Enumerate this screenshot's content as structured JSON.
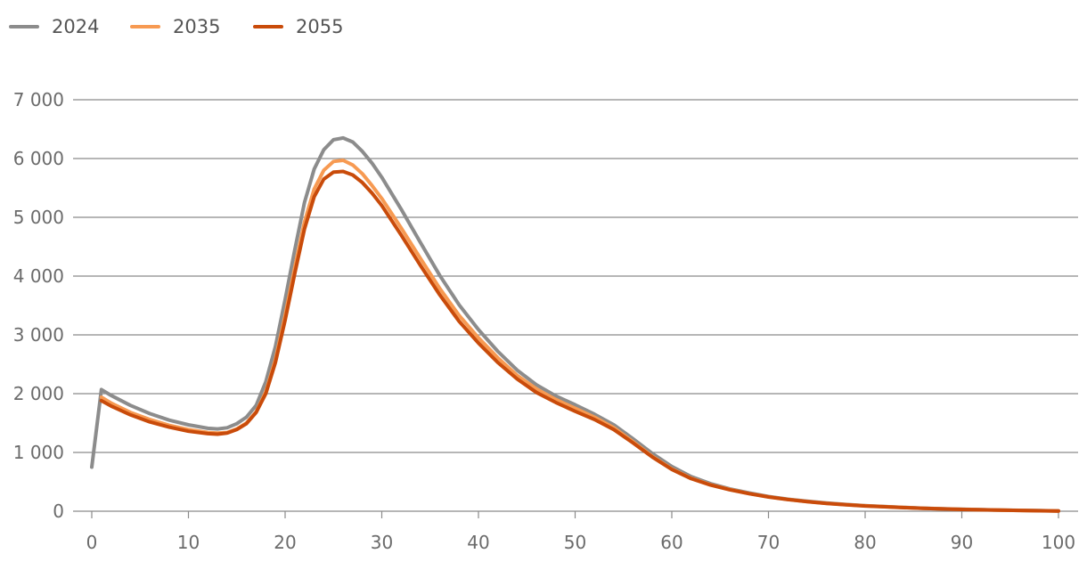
{
  "chart_data": {
    "type": "line",
    "title": "",
    "xlabel": "",
    "ylabel": "",
    "xlim": [
      0,
      100
    ],
    "ylim": [
      0,
      7000
    ],
    "grid": true,
    "legend_position": "top-left",
    "x_ticks": [
      0,
      10,
      20,
      30,
      40,
      50,
      60,
      70,
      80,
      90,
      100
    ],
    "x_tick_labels": [
      "0",
      "10",
      "20",
      "30",
      "40",
      "50",
      "60",
      "70",
      "80",
      "90",
      "100"
    ],
    "y_ticks": [
      0,
      1000,
      2000,
      3000,
      4000,
      5000,
      6000,
      7000
    ],
    "y_tick_labels": [
      "0",
      "1 000",
      "2 000",
      "3 000",
      "4 000",
      "5 000",
      "6 000",
      "7 000"
    ],
    "series": [
      {
        "name": "2024",
        "color": "#8c8c8c",
        "x": [
          0,
          1,
          2,
          4,
          6,
          8,
          10,
          12,
          13,
          14,
          15,
          16,
          17,
          18,
          19,
          20,
          21,
          22,
          23,
          24,
          25,
          26,
          27,
          28,
          29,
          30,
          32,
          34,
          36,
          38,
          40,
          42,
          44,
          46,
          48,
          50,
          52,
          54,
          56,
          58,
          60,
          62,
          64,
          66,
          68,
          70,
          72,
          74,
          76,
          78,
          80,
          82,
          84,
          86,
          88,
          90,
          92,
          94,
          96,
          98,
          100
        ],
        "values": [
          750,
          2070,
          1970,
          1800,
          1660,
          1550,
          1470,
          1410,
          1400,
          1420,
          1490,
          1600,
          1800,
          2200,
          2800,
          3600,
          4450,
          5250,
          5820,
          6150,
          6320,
          6350,
          6280,
          6120,
          5920,
          5680,
          5140,
          4570,
          4010,
          3510,
          3090,
          2720,
          2400,
          2150,
          1960,
          1810,
          1650,
          1470,
          1230,
          980,
          760,
          590,
          470,
          380,
          310,
          250,
          205,
          170,
          140,
          115,
          95,
          80,
          65,
          52,
          42,
          34,
          26,
          20,
          15,
          10,
          5
        ]
      },
      {
        "name": "2035",
        "color": "#f79a52",
        "x": [
          1,
          2,
          4,
          6,
          8,
          10,
          12,
          13,
          14,
          15,
          16,
          17,
          18,
          19,
          20,
          21,
          22,
          23,
          24,
          25,
          26,
          27,
          28,
          29,
          30,
          32,
          34,
          36,
          38,
          40,
          42,
          44,
          46,
          48,
          50,
          52,
          54,
          56,
          58,
          60,
          62,
          64,
          66,
          68,
          70,
          72,
          74,
          76,
          78,
          80,
          82,
          84,
          86,
          88,
          90,
          92,
          94,
          96,
          98,
          100
        ],
        "values": [
          1940,
          1840,
          1680,
          1560,
          1460,
          1390,
          1340,
          1330,
          1340,
          1400,
          1500,
          1690,
          2030,
          2580,
          3330,
          4150,
          4920,
          5480,
          5800,
          5950,
          5970,
          5890,
          5740,
          5540,
          5320,
          4820,
          4300,
          3790,
          3330,
          2950,
          2610,
          2310,
          2080,
          1900,
          1750,
          1600,
          1420,
          1180,
          930,
          720,
          560,
          450,
          370,
          300,
          245,
          200,
          165,
          135,
          112,
          92,
          77,
          63,
          50,
          40,
          32,
          25,
          19,
          14,
          9,
          4
        ]
      },
      {
        "name": "2055",
        "color": "#c94b0a",
        "x": [
          1,
          2,
          4,
          6,
          8,
          10,
          12,
          13,
          14,
          15,
          16,
          17,
          18,
          19,
          20,
          21,
          22,
          23,
          24,
          25,
          26,
          27,
          28,
          29,
          30,
          32,
          34,
          36,
          38,
          40,
          42,
          44,
          46,
          48,
          50,
          52,
          54,
          56,
          58,
          60,
          62,
          64,
          66,
          68,
          70,
          72,
          74,
          76,
          78,
          80,
          82,
          84,
          86,
          88,
          90,
          92,
          94,
          96,
          98,
          100
        ],
        "values": [
          1880,
          1790,
          1640,
          1520,
          1430,
          1360,
          1320,
          1310,
          1330,
          1390,
          1490,
          1680,
          2000,
          2530,
          3250,
          4050,
          4800,
          5350,
          5650,
          5770,
          5780,
          5720,
          5590,
          5410,
          5200,
          4700,
          4180,
          3680,
          3230,
          2860,
          2530,
          2250,
          2020,
          1850,
          1700,
          1560,
          1390,
          1160,
          920,
          710,
          555,
          445,
          365,
          298,
          243,
          199,
          163,
          133,
          110,
          90,
          75,
          61,
          49,
          39,
          31,
          24,
          18,
          13,
          8,
          4
        ]
      }
    ]
  }
}
